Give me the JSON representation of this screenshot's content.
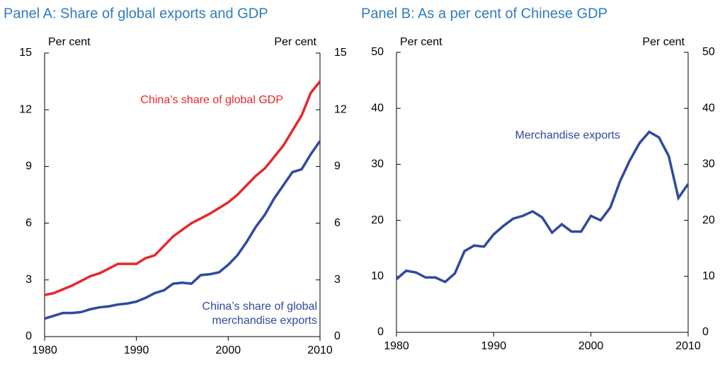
{
  "chart_data": [
    {
      "type": "line",
      "title": "Panel A: Share of global exports and GDP",
      "ylabel": "Per cent",
      "y2label": "Per cent",
      "x": [
        1980,
        1981,
        1982,
        1983,
        1984,
        1985,
        1986,
        1987,
        1988,
        1989,
        1990,
        1991,
        1992,
        1993,
        1994,
        1995,
        1996,
        1997,
        1998,
        1999,
        2000,
        2001,
        2002,
        2003,
        2004,
        2005,
        2006,
        2007,
        2008,
        2009,
        2010
      ],
      "xlim": [
        1980,
        2010
      ],
      "xticks": [
        1980,
        1990,
        2000,
        2010
      ],
      "ylim": [
        0,
        15
      ],
      "yticks": [
        0,
        3,
        6,
        9,
        12,
        15
      ],
      "y2lim": [
        0,
        15
      ],
      "y2ticks": [
        0,
        3,
        6,
        9,
        12,
        15
      ],
      "series": [
        {
          "name": "China’s share of global GDP",
          "color": "#e8262a",
          "values": [
            2.2,
            2.3,
            2.5,
            2.7,
            2.95,
            3.2,
            3.35,
            3.6,
            3.85,
            3.85,
            3.85,
            4.15,
            4.3,
            4.8,
            5.3,
            5.65,
            6.0,
            6.25,
            6.5,
            6.8,
            7.1,
            7.5,
            8.0,
            8.5,
            8.9,
            9.5,
            10.1,
            10.9,
            11.7,
            12.9,
            13.5
          ]
        },
        {
          "name": "China’s share of global merchandise exports",
          "color": "#2f4a9e",
          "values": [
            0.95,
            1.1,
            1.25,
            1.25,
            1.3,
            1.45,
            1.55,
            1.6,
            1.7,
            1.75,
            1.85,
            2.05,
            2.3,
            2.45,
            2.8,
            2.85,
            2.8,
            3.25,
            3.3,
            3.4,
            3.8,
            4.3,
            5.0,
            5.8,
            6.45,
            7.3,
            8.0,
            8.7,
            8.85,
            9.65,
            10.35
          ]
        }
      ],
      "annotations": [
        [
          "China’s share of global GDP"
        ],
        [
          "China’s share of global",
          "merchandise exports"
        ]
      ]
    },
    {
      "type": "line",
      "title": "Panel B: As a per cent of Chinese GDP",
      "ylabel": "Per cent",
      "y2label": "Per cent",
      "x": [
        1980,
        1981,
        1982,
        1983,
        1984,
        1985,
        1986,
        1987,
        1988,
        1989,
        1990,
        1991,
        1992,
        1993,
        1994,
        1995,
        1996,
        1997,
        1998,
        1999,
        2000,
        2001,
        2002,
        2003,
        2004,
        2005,
        2006,
        2007,
        2008,
        2009,
        2010
      ],
      "xlim": [
        1980,
        2010
      ],
      "xticks": [
        1980,
        1990,
        2000,
        2010
      ],
      "ylim": [
        0,
        50
      ],
      "yticks": [
        0,
        10,
        20,
        30,
        40,
        50
      ],
      "y2lim": [
        0,
        50
      ],
      "y2ticks": [
        0,
        10,
        20,
        30,
        40,
        50
      ],
      "series": [
        {
          "name": "Merchandise exports",
          "color": "#2f4a9e",
          "values": [
            9.5,
            11,
            10.7,
            9.8,
            9.8,
            9,
            10.5,
            14.5,
            15.5,
            15.3,
            17.5,
            19,
            20.3,
            20.8,
            21.6,
            20.5,
            17.8,
            19.3,
            18,
            18,
            20.8,
            20,
            22.3,
            27,
            30.7,
            33.8,
            35.8,
            34.8,
            31.5,
            24,
            26.5
          ]
        }
      ],
      "annotations": [
        [
          "Merchandise exports"
        ]
      ]
    }
  ]
}
